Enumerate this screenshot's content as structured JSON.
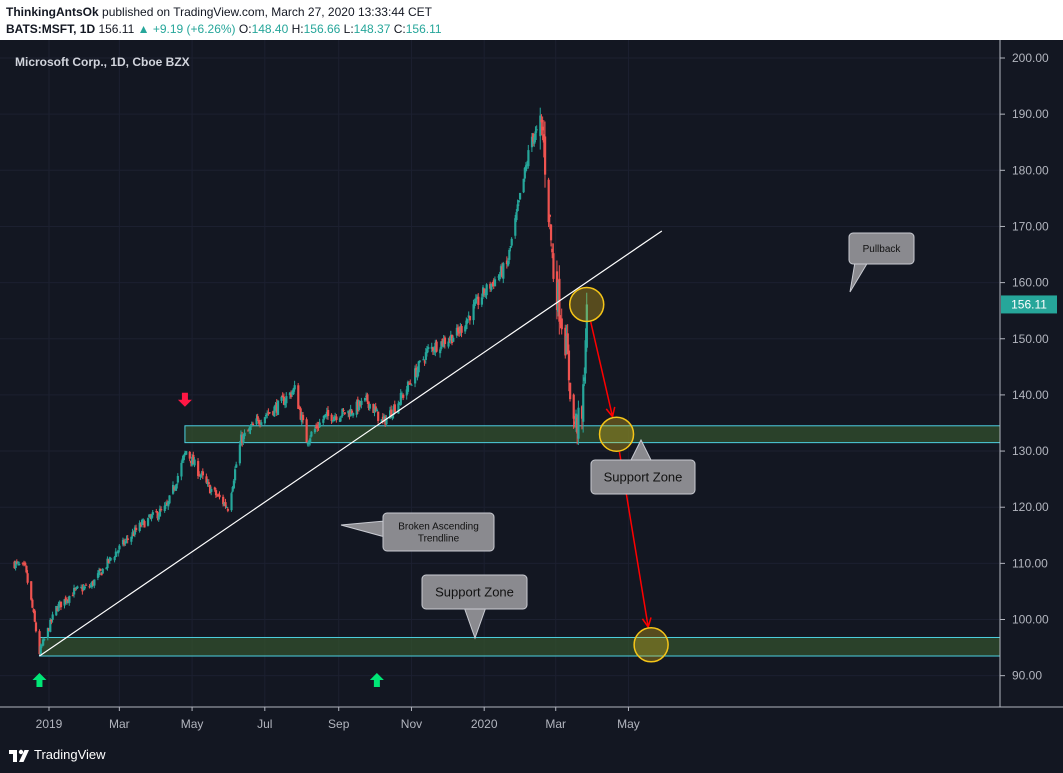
{
  "header": {
    "author": "ThinkingAntsOk",
    "published_text": "published on TradingView.com, March 27, 2020 13:33:44 CET",
    "symbol": "BATS:MSFT, 1D",
    "last": "156.11",
    "change": "▲ +9.19 (+6.26%)",
    "o_label": "O:",
    "o": "148.40",
    "h_label": "H:",
    "h": "156.66",
    "l_label": "L:",
    "l": "148.37",
    "c_label": "C:",
    "c": "156.11"
  },
  "chart_title": "Microsoft Corp., 1D, Cboe BZX",
  "price_badge": "156.11",
  "footer": {
    "brand": "TradingView"
  },
  "colors": {
    "background": "#131722",
    "up": "#26a69a",
    "down": "#ef5350",
    "zone_fill": "#33502e",
    "zone_border": "#4dd0e1",
    "trendline": "#ffffff",
    "projection": "#ff0000",
    "circle": "#f5c518",
    "callout": "#8a8a8f"
  },
  "icons": {
    "up_arrow": "green-up-arrow-icon",
    "down_arrow": "red-down-arrow-icon",
    "logo": "tradingview-logo-icon"
  },
  "chart_data": {
    "type": "candlestick",
    "title": "Microsoft Corp., 1D, Cboe BZX",
    "x_ticks": [
      "2019",
      "Mar",
      "May",
      "Jul",
      "Sep",
      "Nov",
      "2020",
      "Mar",
      "May"
    ],
    "y_ticks": [
      "200.00",
      "190.00",
      "180.00",
      "170.00",
      "160.00",
      "150.00",
      "140.00",
      "130.00",
      "120.00",
      "110.00",
      "100.00",
      "90.00"
    ],
    "ylim": [
      84,
      202
    ],
    "price_path": [
      {
        "date": "2018-12-03",
        "close": 110
      },
      {
        "date": "2018-12-12",
        "close": 109
      },
      {
        "date": "2018-12-18",
        "close": 102
      },
      {
        "date": "2018-12-24",
        "close": 94.1
      },
      {
        "date": "2019-01-07",
        "close": 102
      },
      {
        "date": "2019-01-22",
        "close": 105
      },
      {
        "date": "2019-02-05",
        "close": 106
      },
      {
        "date": "2019-02-26",
        "close": 112
      },
      {
        "date": "2019-03-20",
        "close": 117
      },
      {
        "date": "2019-04-10",
        "close": 120
      },
      {
        "date": "2019-04-26",
        "close": 130
      },
      {
        "date": "2019-05-13",
        "close": 124
      },
      {
        "date": "2019-05-31",
        "close": 120
      },
      {
        "date": "2019-06-11",
        "close": 132
      },
      {
        "date": "2019-06-28",
        "close": 136
      },
      {
        "date": "2019-07-12",
        "close": 138
      },
      {
        "date": "2019-07-26",
        "close": 141
      },
      {
        "date": "2019-08-05",
        "close": 132
      },
      {
        "date": "2019-08-20",
        "close": 136
      },
      {
        "date": "2019-09-10",
        "close": 137
      },
      {
        "date": "2019-09-25",
        "close": 139
      },
      {
        "date": "2019-10-08",
        "close": 135
      },
      {
        "date": "2019-10-25",
        "close": 140
      },
      {
        "date": "2019-11-15",
        "close": 148
      },
      {
        "date": "2019-12-10",
        "close": 151
      },
      {
        "date": "2019-12-31",
        "close": 158
      },
      {
        "date": "2020-01-20",
        "close": 163
      },
      {
        "date": "2020-02-10",
        "close": 186
      },
      {
        "date": "2020-02-19",
        "close": 187
      },
      {
        "date": "2020-02-28",
        "close": 162
      },
      {
        "date": "2020-03-09",
        "close": 150
      },
      {
        "date": "2020-03-16",
        "close": 135
      },
      {
        "date": "2020-03-23",
        "close": 135
      },
      {
        "date": "2020-03-27",
        "close": 156.11
      }
    ],
    "annotations": {
      "support_zones": [
        {
          "label": "Support Zone",
          "low": 131.5,
          "high": 134.5,
          "start": "2019-04-25"
        },
        {
          "label": "Support Zone",
          "low": 93.5,
          "high": 96.8,
          "start": "2018-12-24"
        }
      ],
      "trendline": {
        "label": "Broken Ascending Trendline",
        "points": [
          {
            "date": "2018-12-24",
            "price": 93.5
          },
          {
            "date": "2020-05-29",
            "price": 169.2
          }
        ]
      },
      "callouts": [
        "Pullback",
        "Support Zone",
        "Broken Ascending\nTrendline",
        "Support Zone"
      ],
      "callout_pullback": "Pullback",
      "callout_trendline_line1": "Broken Ascending",
      "callout_trendline_line2": "Trendline",
      "callout_support_upper": "Support Zone",
      "callout_support_lower": "Support Zone",
      "projection": [
        {
          "date": "2020-03-27",
          "price": 156.11
        },
        {
          "date": "2020-04-21",
          "price": 133
        },
        {
          "date": "2020-05-20",
          "price": 95.5
        }
      ],
      "markers": [
        {
          "type": "up",
          "date": "2018-12-24"
        },
        {
          "type": "down",
          "date": "2019-04-25"
        },
        {
          "type": "up",
          "date": "2019-10-03"
        }
      ]
    }
  }
}
